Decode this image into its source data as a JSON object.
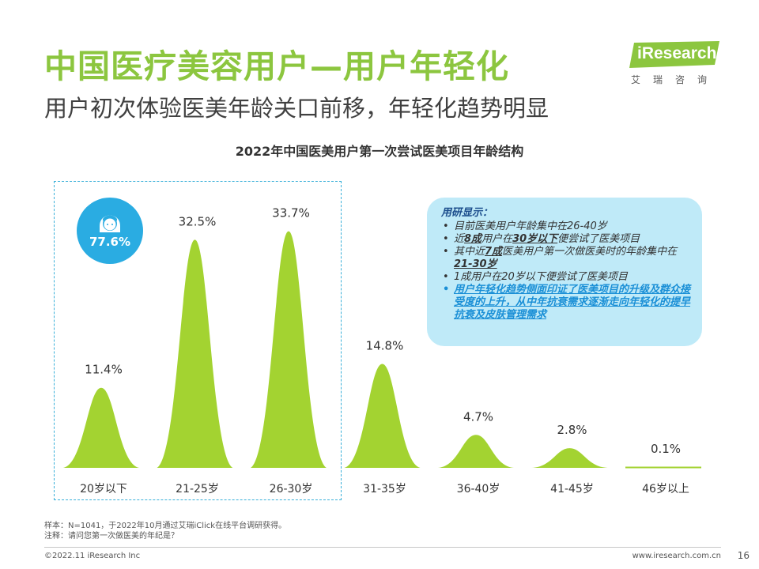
{
  "header": {
    "title": "中国医疗美容用户—用户年轻化",
    "subtitle": "用户初次体验医美年龄关口前移，年轻化趋势明显"
  },
  "logo": {
    "text": "iResearch",
    "cn": "艾瑞咨询",
    "color": "#8cc63f",
    "icon": "iresearch-logo"
  },
  "badge": {
    "value": "77.6%",
    "icon": "female-user-icon",
    "color": "#2aace2"
  },
  "callout": {
    "heading": "用研显示：",
    "items": [
      {
        "pre": "目前医美用户年龄集中在26-40岁"
      },
      {
        "pre": "近",
        "em1": "8成",
        "mid": "用户在",
        "em2": "30岁以下",
        "post": "便尝试了医美项目"
      },
      {
        "pre": "其中近",
        "em1": "7成",
        "mid": "医美用户第一次做医美时的年龄集中在",
        "em2": "21-30岁",
        "post": ""
      },
      {
        "pre": "1成用户在20岁以下便尝试了医美项目"
      },
      {
        "pre": "用户年轻化趋势侧面印证了医美项目的升级及群众接受度的上升，从中年抗衰需求逐渐走向年轻化的提早抗衰及皮肤管理需求"
      }
    ]
  },
  "notes": {
    "sample": "样本：N=1041，于2022年10月通过艾瑞iClick在线平台调研获得。",
    "remark": "注释：请问您第一次做医美的年纪是？"
  },
  "footer": {
    "copyright": "©2022.11 iResearch Inc",
    "site": "www.iresearch.com.cn",
    "page": "16"
  },
  "chart_data": {
    "type": "area",
    "title": "2022年中国医美用户第一次尝试医美项目年龄结构",
    "categories": [
      "20岁以下",
      "21-25岁",
      "26-30岁",
      "31-35岁",
      "36-40岁",
      "41-45岁",
      "46岁以上"
    ],
    "values": [
      11.4,
      32.5,
      33.7,
      14.8,
      4.7,
      2.8,
      0.1
    ],
    "labels": [
      "11.4%",
      "32.5%",
      "33.7%",
      "14.8%",
      "4.7%",
      "2.8%",
      "0.1%"
    ],
    "color": "#a3d331",
    "ylim": [
      0,
      34
    ],
    "grid": false,
    "highlight_group": [
      "20岁以下",
      "21-25岁",
      "26-30岁"
    ]
  }
}
